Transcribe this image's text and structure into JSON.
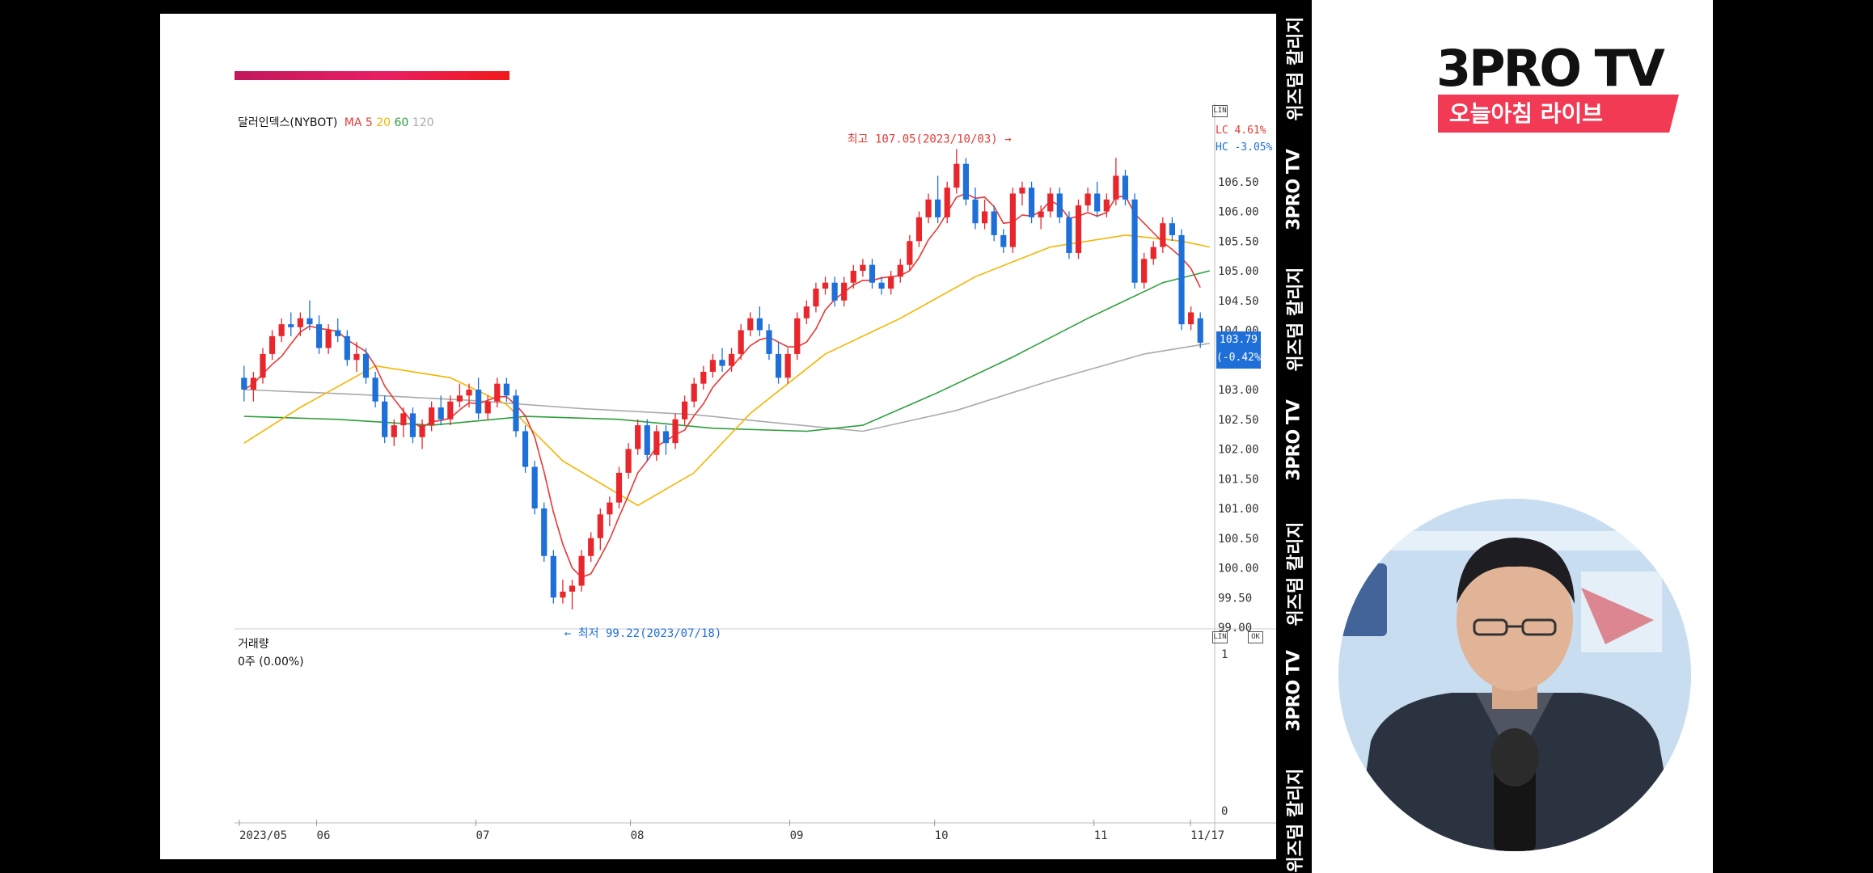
{
  "chart_data": {
    "type": "candlestick",
    "title": "달러인덱스(NYBOT)",
    "ma_label": "MA",
    "ma_periods": [
      {
        "label": "5",
        "color": "#e53935"
      },
      {
        "label": "20",
        "color": "#f6b400"
      },
      {
        "label": "60",
        "color": "#2e9e3e"
      },
      {
        "label": "120",
        "color": "#aaaaaa"
      }
    ],
    "y_ticks": [
      "106.50",
      "106.00",
      "105.50",
      "105.00",
      "104.50",
      "104.00",
      "103.50",
      "103.00",
      "102.50",
      "102.00",
      "101.50",
      "101.00",
      "100.50",
      "100.00",
      "99.50",
      "99.00"
    ],
    "ylim": [
      99.0,
      107.0
    ],
    "x_labels": [
      "2023/05",
      "06",
      "07",
      "08",
      "09",
      "10",
      "11",
      "11/17"
    ],
    "annotations": {
      "high": "최고 107.05(2023/10/03)",
      "low": "최저 99.22(2023/07/18)"
    },
    "last_price": "103.79",
    "last_change": "(-0.42%)",
    "lc_label": "LC 4.61%",
    "hc_label": "HC -3.05%",
    "colors": {
      "up": "#e8262c",
      "down": "#1e6fd8",
      "ma5": "#e53935",
      "ma20": "#f6b400",
      "ma60": "#2e9e3e",
      "ma120": "#aaaaaa"
    },
    "candles": [
      [
        103.2,
        103.4,
        102.8,
        103.0
      ],
      [
        103.0,
        103.3,
        102.8,
        103.2
      ],
      [
        103.2,
        103.7,
        103.1,
        103.6
      ],
      [
        103.6,
        104.0,
        103.5,
        103.9
      ],
      [
        103.9,
        104.2,
        103.8,
        104.1
      ],
      [
        104.1,
        104.3,
        103.9,
        104.05
      ],
      [
        104.05,
        104.3,
        103.9,
        104.2
      ],
      [
        104.2,
        104.5,
        104.0,
        104.1
      ],
      [
        104.1,
        104.25,
        103.6,
        103.7
      ],
      [
        103.7,
        104.1,
        103.6,
        104.0
      ],
      [
        104.0,
        104.2,
        103.8,
        103.9
      ],
      [
        103.9,
        104.0,
        103.4,
        103.5
      ],
      [
        103.5,
        103.8,
        103.3,
        103.6
      ],
      [
        103.6,
        103.7,
        103.1,
        103.2
      ],
      [
        103.2,
        103.3,
        102.7,
        102.8
      ],
      [
        102.8,
        102.9,
        102.1,
        102.2
      ],
      [
        102.2,
        102.5,
        102.05,
        102.4
      ],
      [
        102.4,
        102.7,
        102.2,
        102.6
      ],
      [
        102.6,
        102.7,
        102.1,
        102.2
      ],
      [
        102.2,
        102.5,
        102.0,
        102.4
      ],
      [
        102.4,
        102.8,
        102.3,
        102.7
      ],
      [
        102.7,
        102.9,
        102.4,
        102.5
      ],
      [
        102.5,
        102.9,
        102.4,
        102.8
      ],
      [
        102.8,
        103.1,
        102.7,
        102.9
      ],
      [
        102.9,
        103.1,
        102.7,
        103.0
      ],
      [
        103.0,
        103.2,
        102.5,
        102.6
      ],
      [
        102.6,
        102.9,
        102.5,
        102.8
      ],
      [
        102.8,
        103.2,
        102.7,
        103.1
      ],
      [
        103.1,
        103.2,
        102.8,
        102.9
      ],
      [
        102.9,
        103.0,
        102.2,
        102.3
      ],
      [
        102.3,
        102.4,
        101.6,
        101.7
      ],
      [
        101.7,
        101.8,
        100.9,
        101.0
      ],
      [
        101.0,
        101.1,
        100.1,
        100.2
      ],
      [
        100.2,
        100.3,
        99.4,
        99.5
      ],
      [
        99.5,
        99.8,
        99.4,
        99.6
      ],
      [
        99.6,
        99.8,
        99.3,
        99.7
      ],
      [
        99.7,
        100.3,
        99.6,
        100.2
      ],
      [
        100.2,
        100.6,
        100.1,
        100.5
      ],
      [
        100.5,
        101.0,
        100.3,
        100.9
      ],
      [
        100.9,
        101.2,
        100.7,
        101.1
      ],
      [
        101.1,
        101.7,
        101.0,
        101.6
      ],
      [
        101.6,
        102.1,
        101.5,
        102.0
      ],
      [
        102.0,
        102.5,
        101.9,
        102.4
      ],
      [
        102.4,
        102.5,
        101.8,
        101.9
      ],
      [
        101.9,
        102.4,
        101.8,
        102.3
      ],
      [
        102.3,
        102.4,
        101.9,
        102.1
      ],
      [
        102.1,
        102.6,
        102.0,
        102.5
      ],
      [
        102.5,
        102.9,
        102.4,
        102.8
      ],
      [
        102.8,
        103.2,
        102.7,
        103.1
      ],
      [
        103.1,
        103.4,
        103.0,
        103.3
      ],
      [
        103.3,
        103.6,
        103.2,
        103.5
      ],
      [
        103.5,
        103.7,
        103.3,
        103.4
      ],
      [
        103.4,
        103.7,
        103.3,
        103.6
      ],
      [
        103.6,
        104.1,
        103.5,
        104.0
      ],
      [
        104.0,
        104.3,
        103.9,
        104.2
      ],
      [
        104.2,
        104.4,
        103.9,
        104.0
      ],
      [
        104.0,
        104.1,
        103.5,
        103.6
      ],
      [
        103.6,
        103.8,
        103.1,
        103.2
      ],
      [
        103.2,
        103.7,
        103.1,
        103.6
      ],
      [
        103.6,
        104.3,
        103.5,
        104.2
      ],
      [
        104.2,
        104.5,
        104.1,
        104.4
      ],
      [
        104.4,
        104.8,
        104.3,
        104.7
      ],
      [
        104.7,
        104.9,
        104.6,
        104.8
      ],
      [
        104.8,
        104.9,
        104.4,
        104.5
      ],
      [
        104.5,
        104.9,
        104.4,
        104.8
      ],
      [
        104.8,
        105.1,
        104.7,
        105.0
      ],
      [
        105.0,
        105.2,
        104.9,
        105.1
      ],
      [
        105.1,
        105.2,
        104.7,
        104.8
      ],
      [
        104.8,
        104.9,
        104.6,
        104.7
      ],
      [
        104.7,
        105.0,
        104.6,
        104.9
      ],
      [
        104.9,
        105.2,
        104.8,
        105.1
      ],
      [
        105.1,
        105.6,
        105.0,
        105.5
      ],
      [
        105.5,
        106.0,
        105.4,
        105.9
      ],
      [
        105.9,
        106.3,
        105.8,
        106.2
      ],
      [
        106.2,
        106.6,
        105.8,
        105.9
      ],
      [
        105.9,
        106.5,
        105.8,
        106.4
      ],
      [
        106.4,
        107.05,
        106.3,
        106.8
      ],
      [
        106.8,
        106.9,
        106.1,
        106.2
      ],
      [
        106.2,
        106.4,
        105.7,
        105.8
      ],
      [
        105.8,
        106.2,
        105.7,
        106.0
      ],
      [
        106.0,
        106.1,
        105.5,
        105.6
      ],
      [
        105.6,
        105.7,
        105.3,
        105.4
      ],
      [
        105.4,
        106.4,
        105.3,
        106.3
      ],
      [
        106.3,
        106.5,
        106.1,
        106.4
      ],
      [
        106.4,
        106.5,
        105.8,
        105.9
      ],
      [
        105.9,
        106.1,
        105.7,
        106.0
      ],
      [
        106.0,
        106.4,
        105.9,
        106.3
      ],
      [
        106.3,
        106.4,
        105.8,
        105.9
      ],
      [
        105.9,
        106.0,
        105.2,
        105.3
      ],
      [
        105.3,
        106.2,
        105.2,
        106.1
      ],
      [
        106.1,
        106.4,
        106.0,
        106.3
      ],
      [
        106.3,
        106.5,
        105.9,
        106.0
      ],
      [
        106.0,
        106.3,
        105.9,
        106.2
      ],
      [
        106.2,
        106.9,
        106.1,
        106.6
      ],
      [
        106.6,
        106.7,
        106.1,
        106.2
      ],
      [
        106.2,
        106.3,
        104.7,
        104.8
      ],
      [
        104.8,
        105.3,
        104.7,
        105.2
      ],
      [
        105.2,
        105.5,
        105.1,
        105.4
      ],
      [
        105.4,
        105.9,
        105.3,
        105.8
      ],
      [
        105.8,
        105.9,
        105.5,
        105.6
      ],
      [
        105.6,
        105.7,
        104.0,
        104.1
      ],
      [
        104.1,
        104.4,
        104.0,
        104.3
      ],
      [
        104.2,
        104.3,
        103.7,
        103.79
      ]
    ],
    "ma20": [
      [
        0,
        102.1
      ],
      [
        6,
        102.7
      ],
      [
        14,
        103.4
      ],
      [
        22,
        103.2
      ],
      [
        28,
        102.75
      ],
      [
        34,
        101.8
      ],
      [
        42,
        101.05
      ],
      [
        48,
        101.6
      ],
      [
        54,
        102.6
      ],
      [
        62,
        103.6
      ],
      [
        70,
        104.2
      ],
      [
        78,
        104.9
      ],
      [
        86,
        105.4
      ],
      [
        94,
        105.6
      ],
      [
        100,
        105.5
      ],
      [
        103,
        105.4
      ]
    ],
    "ma60": [
      [
        0,
        102.55
      ],
      [
        10,
        102.5
      ],
      [
        20,
        102.4
      ],
      [
        30,
        102.55
      ],
      [
        40,
        102.5
      ],
      [
        50,
        102.35
      ],
      [
        60,
        102.3
      ],
      [
        66,
        102.4
      ],
      [
        74,
        102.95
      ],
      [
        82,
        103.55
      ],
      [
        90,
        104.2
      ],
      [
        98,
        104.8
      ],
      [
        103,
        105.0
      ]
    ],
    "ma120": [
      [
        0,
        103.0
      ],
      [
        12,
        102.92
      ],
      [
        24,
        102.82
      ],
      [
        36,
        102.68
      ],
      [
        48,
        102.58
      ],
      [
        58,
        102.42
      ],
      [
        66,
        102.3
      ],
      [
        76,
        102.65
      ],
      [
        86,
        103.15
      ],
      [
        96,
        103.6
      ],
      [
        103,
        103.78
      ]
    ],
    "volume_title": "거래량",
    "volume_value": "0주 (0.00%)",
    "volume_ticks": [
      "1",
      "0"
    ]
  },
  "panel_buttons": {
    "top": "LIN",
    "right": "OK"
  },
  "brand": {
    "logo": "3PRO TV",
    "subtitle": "오늘아침 라이브"
  },
  "strip_text": [
    "위즈덤 칼리지",
    "3PRO TV",
    "위즈덤 칼리지",
    "3PRO TV",
    "위즈덤 칼리지",
    "3PRO TV",
    "위즈덤 칼리지"
  ]
}
